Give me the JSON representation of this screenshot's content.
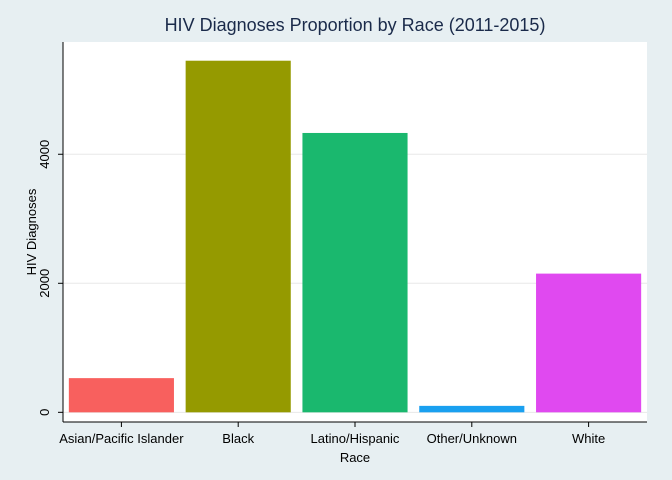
{
  "chart_data": {
    "type": "bar",
    "title": "HIV Diagnoses Proportion by Race (2011-2015)",
    "xlabel": "Race",
    "ylabel": "HIV Diagnoses",
    "categories": [
      "Asian/Pacific Islander",
      "Black",
      "Latino/Hispanic",
      "Other/Unknown",
      "White"
    ],
    "values": [
      530,
      5450,
      4330,
      100,
      2150
    ],
    "colors": [
      "#f8605e",
      "#959a00",
      "#1ab86e",
      "#1aa0f0",
      "#e049f0"
    ],
    "yticks": [
      0,
      2000,
      4000
    ],
    "ytick_labels": [
      "0",
      "2000",
      "4000"
    ],
    "ylim": [
      -150,
      5740
    ],
    "grid": true
  }
}
